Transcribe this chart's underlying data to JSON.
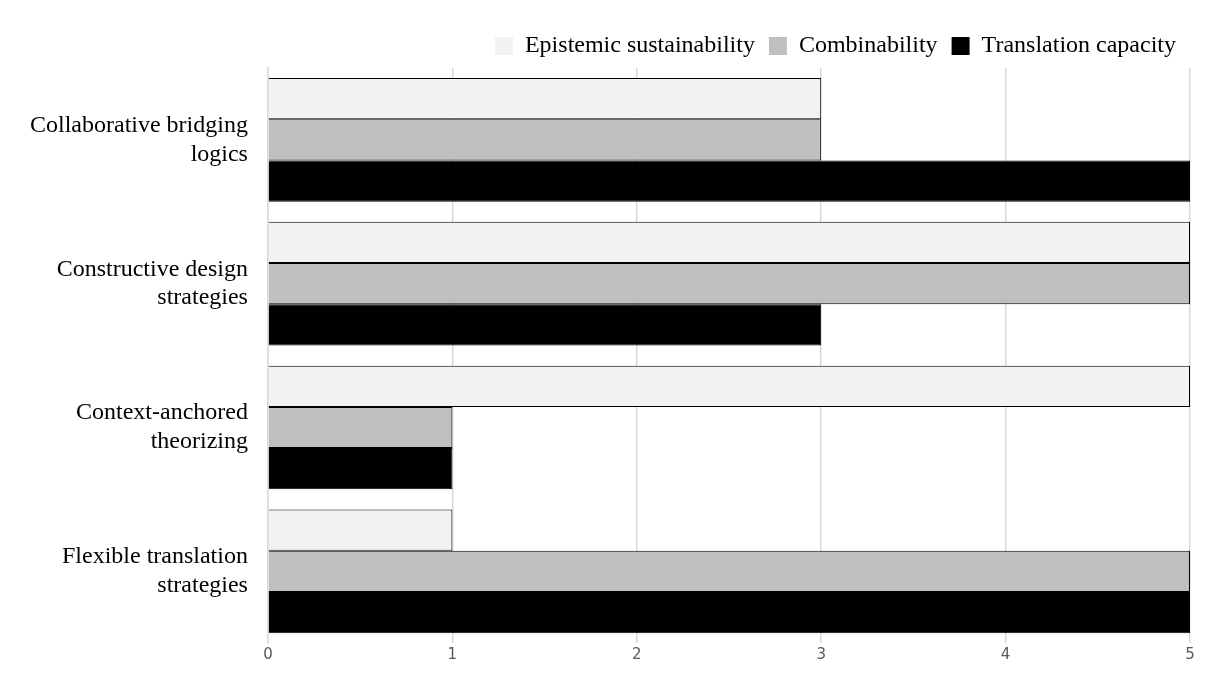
{
  "chart_data": {
    "type": "bar",
    "orientation": "horizontal",
    "categories": [
      "Collaborative bridging logics",
      "Constructive design strategies",
      "Context-anchored theorizing",
      "Flexible translation strategies"
    ],
    "series": [
      {
        "name": "Epistemic sustainability",
        "color": "#f2f2f2",
        "values": [
          3,
          5,
          5,
          1
        ]
      },
      {
        "name": "Combinability",
        "color": "#bfbfbf",
        "values": [
          3,
          5,
          1,
          5
        ]
      },
      {
        "name": "Translation capacity",
        "color": "#000000",
        "values": [
          5,
          3,
          1,
          5
        ]
      }
    ],
    "xlim": [
      0,
      5
    ],
    "xticks": [
      0,
      1,
      2,
      3,
      4,
      5
    ],
    "grid": "x",
    "legend": "top right"
  }
}
